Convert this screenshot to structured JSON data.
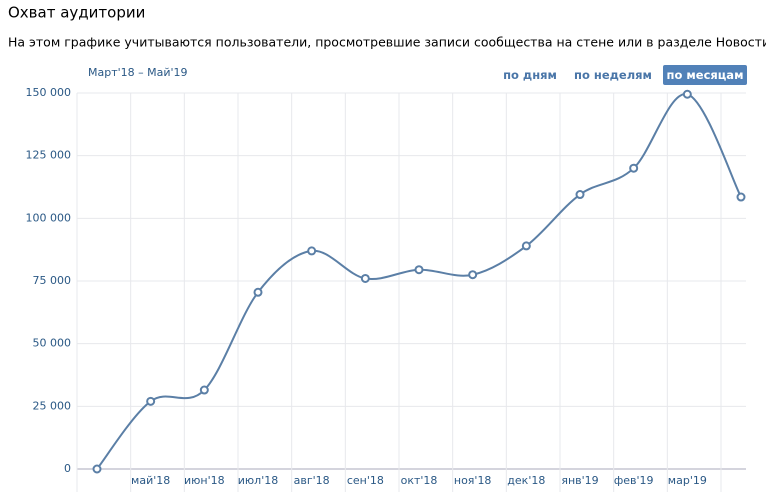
{
  "chart_data": {
    "type": "line",
    "title": "Охват аудитории",
    "subtitle": "На этом графике учитываются пользователи, просмотревшие записи сообщества на стене или в разделе Новости.",
    "range_label": "Март'18 – Май'19",
    "buttons": [
      "по дням",
      "по неделям",
      "по месяцам"
    ],
    "active_button": 2,
    "categories": [
      null,
      "май'18",
      "июн'18",
      "июл'18",
      "авг'18",
      "сен'18",
      "окт'18",
      "ноя'18",
      "дек'18",
      "янв'19",
      "фев'19",
      "мар'19",
      null
    ],
    "series": [
      {
        "name": "Охват",
        "color": "#5b7fa6",
        "values": [
          0,
          27000,
          31500,
          70500,
          87000,
          76000,
          79500,
          77500,
          89000,
          109500,
          120000,
          149500,
          108500
        ]
      }
    ],
    "ylim": [
      0,
      150000
    ],
    "yticks": [
      0,
      {
        "value": 25000,
        "label": "25 000"
      },
      {
        "value": 50000,
        "label": "50 000"
      },
      {
        "value": 75000,
        "label": "75 000"
      },
      {
        "value": 100000,
        "label": "100 000"
      },
      {
        "value": 125000,
        "label": "125 000"
      },
      {
        "value": 150000,
        "label": "150 000"
      }
    ],
    "grid": true
  }
}
